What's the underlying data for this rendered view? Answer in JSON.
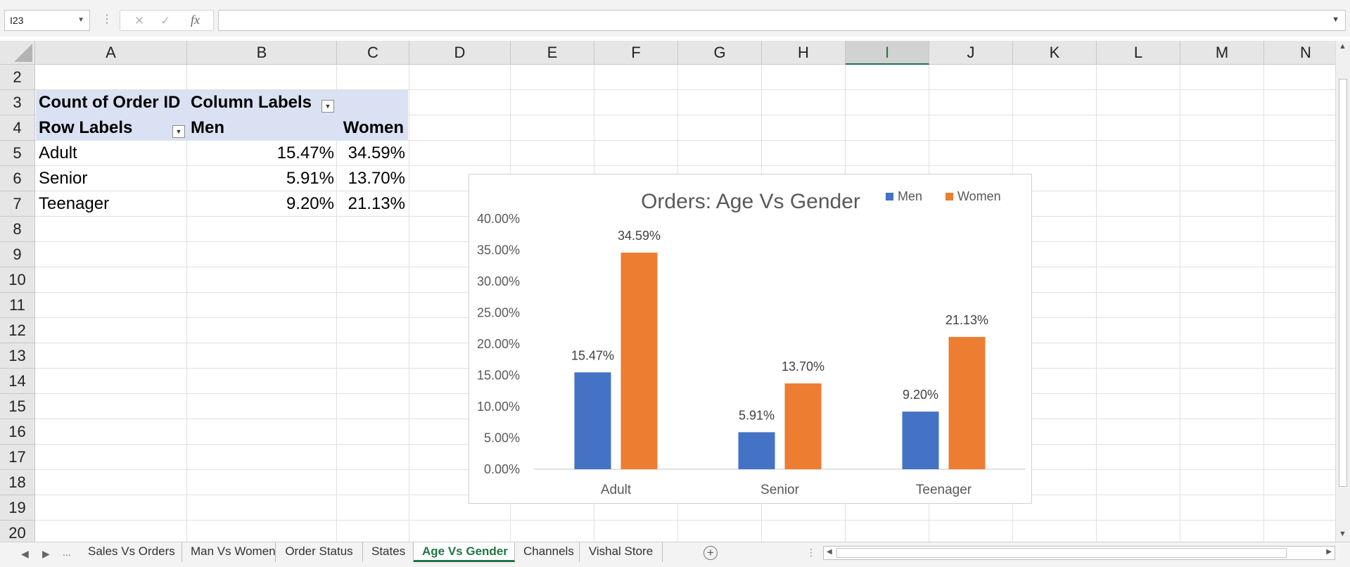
{
  "formula_bar": {
    "name_box": "I23",
    "cancel_icon": "x-icon",
    "enter_icon": "check-icon",
    "function_label": "fx",
    "formula": ""
  },
  "sheet": {
    "columns": [
      "A",
      "B",
      "C",
      "D",
      "E",
      "F",
      "G",
      "H",
      "I",
      "J",
      "K",
      "L",
      "M",
      "N"
    ],
    "selected_column": "I",
    "rows": [
      "2",
      "3",
      "4",
      "5",
      "6",
      "7",
      "8",
      "9",
      "10",
      "11",
      "12",
      "13",
      "14",
      "15",
      "16",
      "17",
      "18",
      "19",
      "20"
    ]
  },
  "pivot": {
    "corner_label": "Count of Order ID",
    "column_labels": "Column Labels",
    "row_labels": "Row Labels",
    "col_men": "Men",
    "col_women": "Women",
    "rows": [
      {
        "label": "Adult",
        "men": "15.47%",
        "women": "34.59%"
      },
      {
        "label": "Senior",
        "men": "5.91%",
        "women": "13.70%"
      },
      {
        "label": "Teenager",
        "men": "9.20%",
        "women": "21.13%"
      }
    ]
  },
  "chart_data": {
    "type": "bar",
    "title": "Orders: Age Vs Gender",
    "categories": [
      "Adult",
      "Senior",
      "Teenager"
    ],
    "series": [
      {
        "name": "Men",
        "values": [
          15.47,
          5.91,
          9.2
        ],
        "labels": [
          "15.47%",
          "5.91%",
          "9.20%"
        ],
        "color": "#4472c4"
      },
      {
        "name": "Women",
        "values": [
          34.59,
          13.7,
          21.13
        ],
        "labels": [
          "34.59%",
          "13.70%",
          "21.13%"
        ],
        "color": "#ed7d31"
      }
    ],
    "ylim": [
      0,
      40
    ],
    "yticks": [
      "0.00%",
      "5.00%",
      "10.00%",
      "15.00%",
      "20.00%",
      "25.00%",
      "30.00%",
      "35.00%",
      "40.00%"
    ],
    "xlabel": "",
    "ylabel": "",
    "grid": false,
    "legend": "top-right"
  },
  "tabs": {
    "ellipsis": "...",
    "items": [
      "Sales Vs Orders",
      "Man Vs Women",
      "Order Status",
      "States",
      "Age Vs Gender",
      "Channels",
      "Vishal Store"
    ],
    "active": "Age Vs Gender"
  }
}
